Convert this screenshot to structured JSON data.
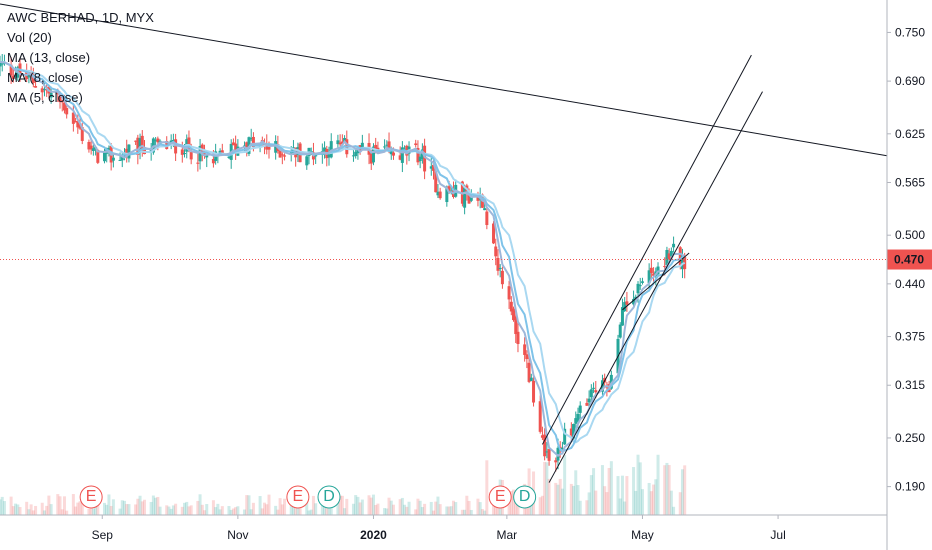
{
  "legend": {
    "title": "AWC BERHAD, 1D, MYX",
    "lines": [
      "Vol (20)",
      "MA (13, close)",
      "MA (8, close)",
      "MA (5, close)"
    ]
  },
  "colors": {
    "up": "#26a69a",
    "down": "#ef5350",
    "ma5": "#9db7da",
    "ma8": "#7fc3e9",
    "ma13": "#a9d8f1",
    "trend": "#131722",
    "price_line": "#ef5350"
  },
  "chart_data": {
    "type": "candlestick",
    "title": "AWC BERHAD, 1D, MYX",
    "indicators": [
      "Vol (20)",
      "MA (13, close)",
      "MA (8, close)",
      "MA (5, close)"
    ],
    "y_ticks": [
      0.75,
      0.69,
      0.625,
      0.565,
      0.5,
      0.44,
      0.375,
      0.315,
      0.25,
      0.19
    ],
    "y_tick_labels": [
      "0.750",
      "0.690",
      "0.625",
      "0.565",
      "0.500",
      "0.440",
      "0.375",
      "0.315",
      "0.250",
      "0.190"
    ],
    "ylim": [
      0.155,
      0.79
    ],
    "x_labels": [
      {
        "label": "Sep",
        "date": "2019-09-01",
        "bold": false
      },
      {
        "label": "Nov",
        "date": "2019-11-01",
        "bold": false
      },
      {
        "label": "2020",
        "date": "2020-01-01",
        "bold": true
      },
      {
        "label": "Mar",
        "date": "2020-03-01",
        "bold": false
      },
      {
        "label": "May",
        "date": "2020-05-01",
        "bold": false
      },
      {
        "label": "Jul",
        "date": "2020-07-01",
        "bold": false
      }
    ],
    "xlim": [
      "2019-07-17",
      "2020-08-19"
    ],
    "last_price": 0.47,
    "last_price_label": "0.470",
    "events": [
      {
        "label": "E",
        "date": "2019-08-27",
        "kind": "earnings"
      },
      {
        "label": "E",
        "date": "2019-11-28",
        "kind": "earnings"
      },
      {
        "label": "D",
        "date": "2019-12-12",
        "kind": "dividend"
      },
      {
        "label": "E",
        "date": "2020-02-27",
        "kind": "earnings"
      },
      {
        "label": "D",
        "date": "2020-03-09",
        "kind": "dividend"
      }
    ],
    "series": [
      {
        "date": "2019-07-17",
        "close": 0.71
      },
      {
        "date": "2019-08-01",
        "close": 0.69
      },
      {
        "date": "2019-08-15",
        "close": 0.66
      },
      {
        "date": "2019-08-28",
        "close": 0.6
      },
      {
        "date": "2019-09-06",
        "close": 0.595
      },
      {
        "date": "2019-09-20",
        "close": 0.61
      },
      {
        "date": "2019-10-07",
        "close": 0.61
      },
      {
        "date": "2019-10-21",
        "close": 0.59
      },
      {
        "date": "2019-11-04",
        "close": 0.615
      },
      {
        "date": "2019-11-18",
        "close": 0.605
      },
      {
        "date": "2019-12-02",
        "close": 0.6
      },
      {
        "date": "2019-12-16",
        "close": 0.61
      },
      {
        "date": "2019-12-30",
        "close": 0.6
      },
      {
        "date": "2020-01-13",
        "close": 0.6
      },
      {
        "date": "2020-01-22",
        "close": 0.6
      },
      {
        "date": "2020-01-31",
        "close": 0.555
      },
      {
        "date": "2020-02-10",
        "close": 0.55
      },
      {
        "date": "2020-02-19",
        "close": 0.545
      },
      {
        "date": "2020-02-24",
        "close": 0.49
      },
      {
        "date": "2020-03-03",
        "close": 0.4
      },
      {
        "date": "2020-03-10",
        "close": 0.34
      },
      {
        "date": "2020-03-17",
        "close": 0.25
      },
      {
        "date": "2020-03-20",
        "close": 0.215
      },
      {
        "date": "2020-03-27",
        "close": 0.25
      },
      {
        "date": "2020-04-03",
        "close": 0.28
      },
      {
        "date": "2020-04-10",
        "close": 0.31
      },
      {
        "date": "2020-04-17",
        "close": 0.32
      },
      {
        "date": "2020-04-23",
        "close": 0.42
      },
      {
        "date": "2020-04-30",
        "close": 0.44
      },
      {
        "date": "2020-05-07",
        "close": 0.46
      },
      {
        "date": "2020-05-14",
        "close": 0.48
      },
      {
        "date": "2020-05-20",
        "close": 0.47
      }
    ],
    "trendlines": [
      {
        "from": {
          "date": "2019-07-17",
          "price": 0.785
        },
        "to": {
          "date": "2020-08-19",
          "price": 0.598
        }
      },
      {
        "from": {
          "date": "2020-03-17",
          "price": 0.242
        },
        "to": {
          "date": "2020-06-19",
          "price": 0.722
        }
      },
      {
        "from": {
          "date": "2020-03-20",
          "price": 0.195
        },
        "to": {
          "date": "2020-06-24",
          "price": 0.677
        }
      },
      {
        "from": {
          "date": "2020-04-22",
          "price": 0.408
        },
        "to": {
          "date": "2020-05-22",
          "price": 0.478
        }
      }
    ]
  }
}
